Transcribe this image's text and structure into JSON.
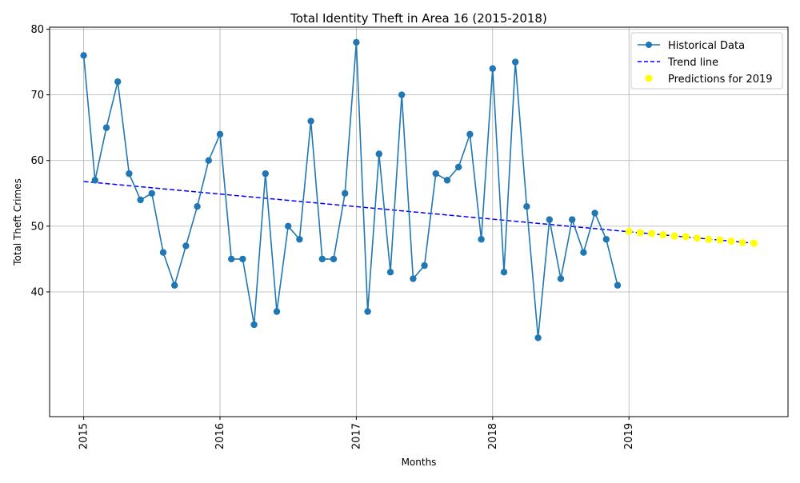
{
  "chart_data": {
    "type": "line",
    "title": "Total Identity Theft in Area 16 (2015-2018)",
    "xlabel": "Months",
    "ylabel": "Total Theft Crimes",
    "x_start": "2015-01",
    "x_ticks": [
      "2015",
      "2016",
      "2017",
      "2018",
      "2019"
    ],
    "xlim": [
      "2014-10",
      "2020-03"
    ],
    "ylim": [
      21,
      80.3
    ],
    "y_ticks": [
      40,
      50,
      60,
      70,
      80
    ],
    "grid": true,
    "legend_position": "top-right",
    "series": [
      {
        "name": "Historical Data",
        "style": "line-with-markers",
        "color": "#1f77b4",
        "values": [
          76,
          57,
          65,
          72,
          58,
          54,
          55,
          46,
          41,
          47,
          53,
          60,
          64,
          45,
          45,
          35,
          58,
          37,
          50,
          48,
          66,
          45,
          45,
          55,
          78,
          37,
          61,
          43,
          70,
          42,
          44,
          58,
          57,
          59,
          64,
          48,
          74,
          43,
          75,
          53,
          33,
          51,
          42,
          51,
          46,
          52,
          48,
          41
        ]
      },
      {
        "name": "Trend line",
        "style": "dashed",
        "color": "#0000ff",
        "start": {
          "x": "2015-01",
          "y": 56.8
        },
        "end": {
          "x": "2019-12",
          "y": 47.4
        }
      },
      {
        "name": "Predictions for 2019",
        "style": "scatter",
        "color": "#ffff00",
        "x_start": "2019-01",
        "values": [
          49.2,
          49.0,
          48.9,
          48.7,
          48.5,
          48.4,
          48.2,
          48.0,
          47.9,
          47.7,
          47.5,
          47.4
        ]
      }
    ]
  }
}
